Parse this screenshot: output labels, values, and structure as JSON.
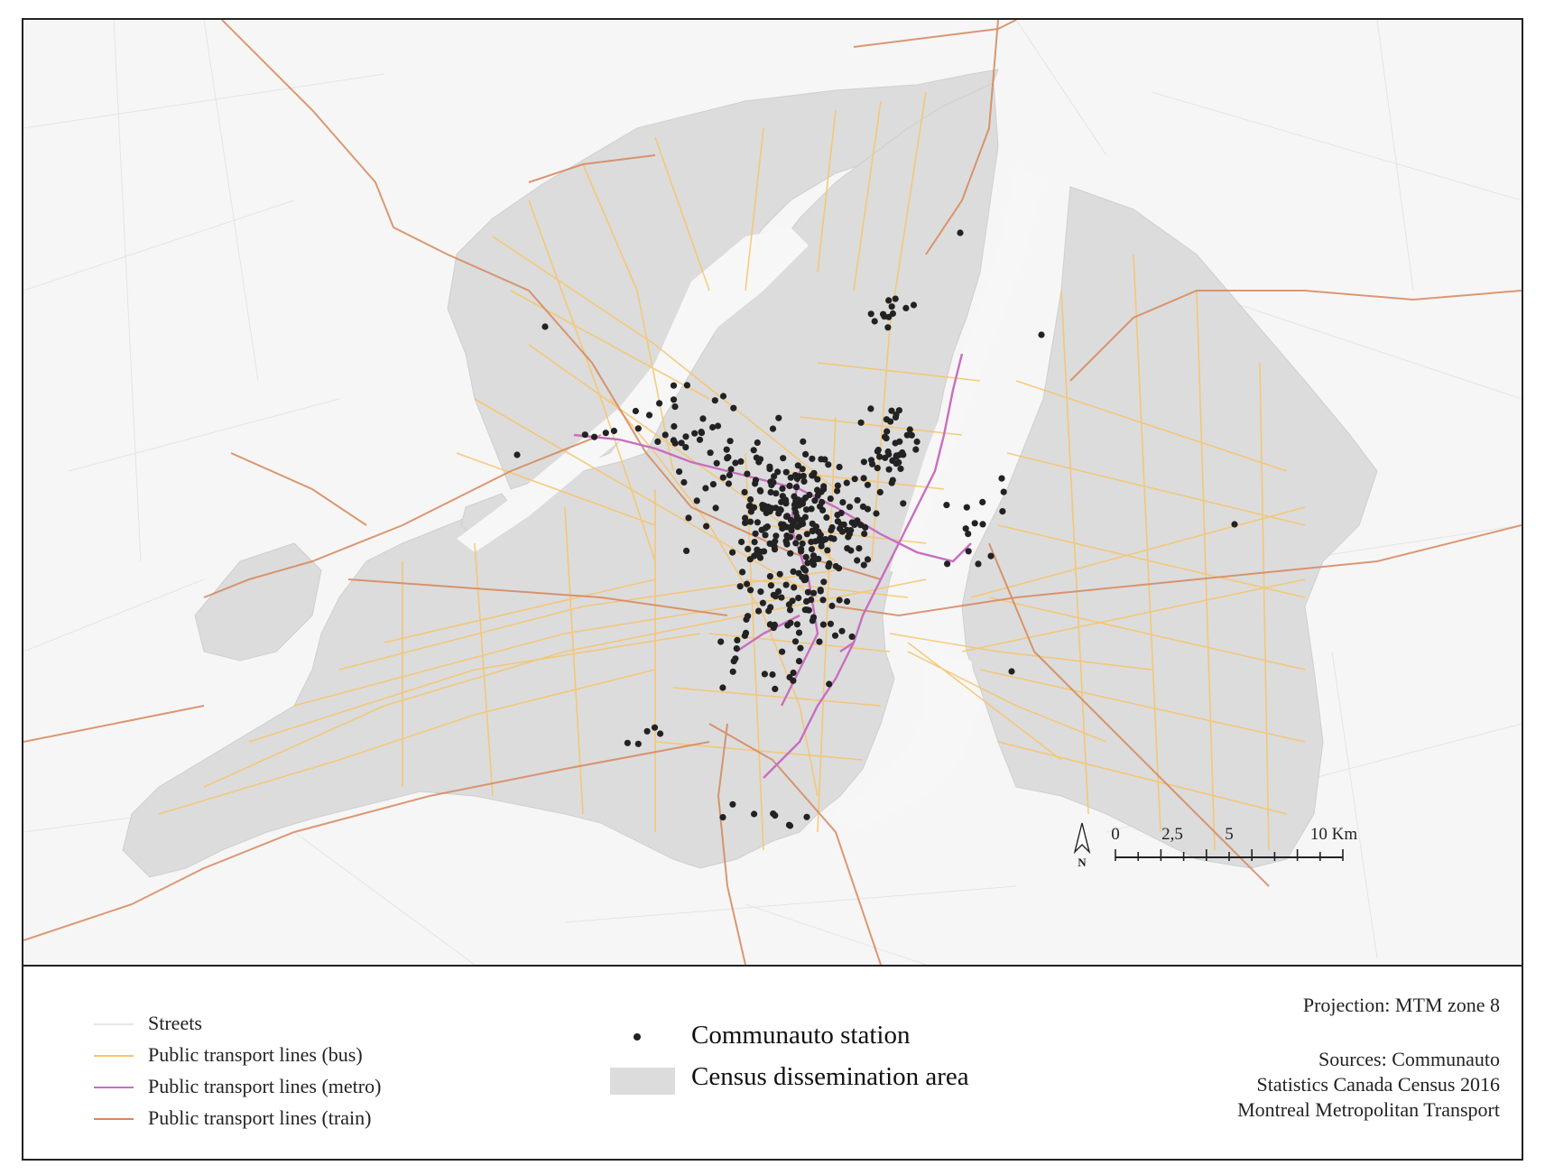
{
  "legend": {
    "streets": "Streets",
    "bus": "Public transport lines (bus)",
    "metro": "Public transport lines (metro)",
    "train": "Public transport lines (train)",
    "station": "Communauto station",
    "census": "Census dissemination area"
  },
  "projection": "Projection: MTM zone 8",
  "sources": {
    "line1": "Sources: Communauto",
    "line2": "Statistics Canada Census 2016",
    "line3": "Montreal Metropolitan Transport"
  },
  "north_arrow": {
    "label": "N",
    "icon": "north-arrow-icon"
  },
  "scale_bar": {
    "ticks": [
      "0",
      "2,5",
      "5",
      "10 Km"
    ]
  },
  "colors": {
    "map_background": "#f6f6f6",
    "census_area": "#dcdcdc",
    "streets": "#e6e6e6",
    "bus": "#f6c46a",
    "metro": "#c76ec0",
    "train": "#d6875a",
    "station": "#222222"
  }
}
